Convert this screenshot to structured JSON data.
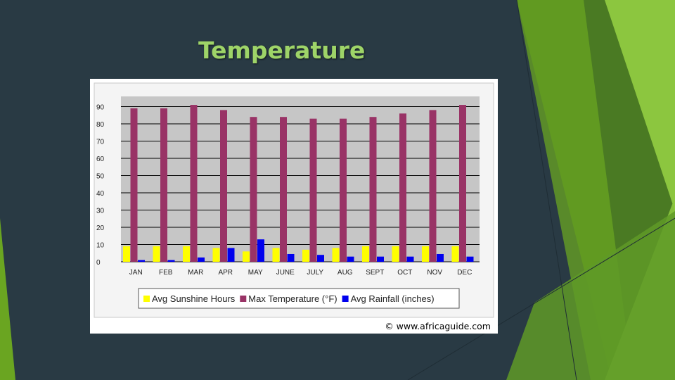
{
  "slide": {
    "title": "Temperature"
  },
  "theme": {
    "background": "#293a44",
    "title_color": "#9ed468",
    "accent_green": "#6aa521"
  },
  "chart_data": {
    "type": "bar",
    "categories": [
      "JAN",
      "FEB",
      "MAR",
      "APR",
      "MAY",
      "JUNE",
      "JULY",
      "AUG",
      "SEPT",
      "OCT",
      "NOV",
      "DEC"
    ],
    "series": [
      {
        "name": "Avg Sunshine Hours",
        "color": "#ffff00",
        "values": [
          9,
          9,
          9,
          8,
          6,
          8,
          7,
          8,
          9,
          9,
          9,
          9
        ]
      },
      {
        "name": "Max Temperature (°F)",
        "color": "#993366",
        "values": [
          89,
          89,
          91,
          88,
          84,
          84,
          83,
          83,
          84,
          86,
          88,
          91
        ]
      },
      {
        "name": "Avg Rainfall (inches)",
        "color": "#0000ee",
        "values": [
          1,
          1,
          2.5,
          8,
          13,
          4.5,
          4,
          3,
          3,
          3,
          4.5,
          3
        ]
      }
    ],
    "y_ticks": [
      0,
      10,
      20,
      30,
      40,
      50,
      60,
      70,
      80,
      90
    ],
    "ylim": [
      0,
      95
    ],
    "grid": true,
    "legend_position": "bottom",
    "credit": "© www.africaguide.com"
  }
}
